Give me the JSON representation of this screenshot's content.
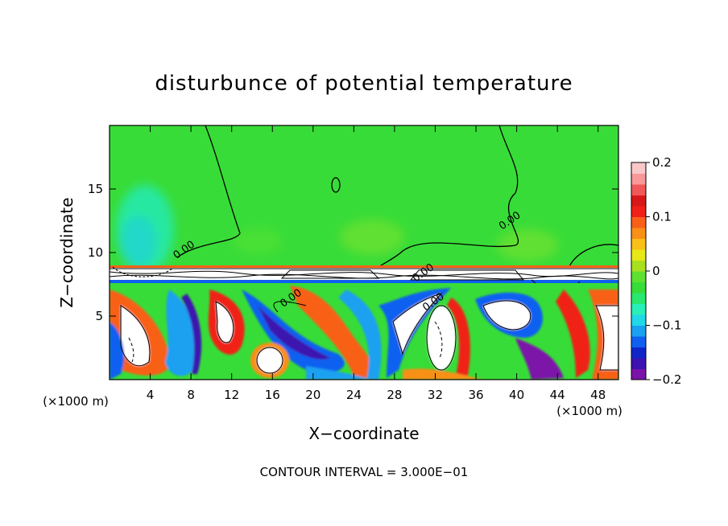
{
  "chart_data": {
    "type": "heatmap",
    "title": "disturbunce of potential temperature",
    "xlabel": "X−coordinate",
    "ylabel": "Z−coordinate",
    "x_unit_left": "(×1000 m)",
    "x_unit_right": "(×1000 m)",
    "xlim": [
      0,
      50
    ],
    "ylim": [
      0,
      20
    ],
    "x_ticks": [
      4,
      8,
      12,
      16,
      20,
      24,
      28,
      32,
      36,
      40,
      44,
      48
    ],
    "y_ticks": [
      5,
      10,
      15
    ],
    "footer": "CONTOUR INTERVAL = 3.000E−01",
    "contour_labels": [
      {
        "text": "0.00",
        "x": 7.5,
        "y": 10.0
      },
      {
        "text": "0.00",
        "x": 18.0,
        "y": 6.2
      },
      {
        "text": "0.00",
        "x": 32.0,
        "y": 5.9
      },
      {
        "text": "0.00",
        "x": 39.5,
        "y": 12.3
      },
      {
        "text": "0.00",
        "x": 31.0,
        "y": 8.2
      }
    ],
    "colorbar": {
      "range": [
        -0.2,
        0.2
      ],
      "tick_labels": [
        "0.2",
        "0.1",
        "0",
        "−0.1",
        "−0.2"
      ],
      "colors": [
        "#7b13a8",
        "#3c12b0",
        "#1025c8",
        "#1060f0",
        "#1aa0f0",
        "#20d8e8",
        "#28f0b8",
        "#28e870",
        "#38dc38",
        "#60e030",
        "#a8e020",
        "#e8e818",
        "#f8c018",
        "#f89018",
        "#f86018",
        "#f02018",
        "#d81818",
        "#f05858",
        "#f89898",
        "#f8c8c8"
      ]
    },
    "series": [
      {
        "upper_layer_value": 0.0,
        "mixed_layer_top": 9.0,
        "mixed_layer_range": [
          -0.2,
          0.2
        ]
      }
    ],
    "grid": false,
    "legend": "right colorbar"
  }
}
